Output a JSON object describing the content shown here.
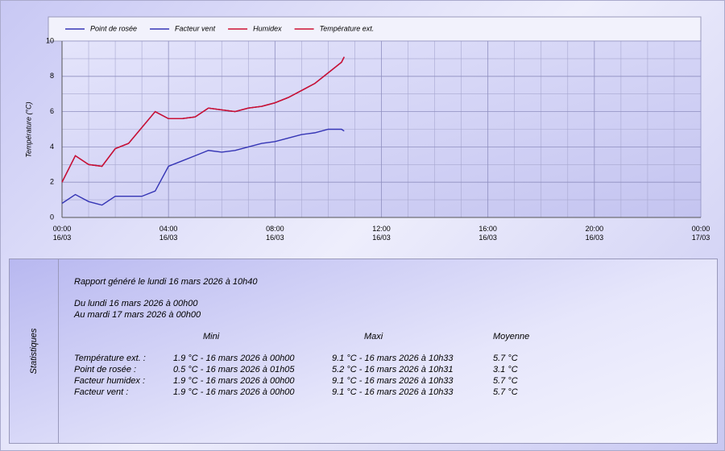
{
  "chart_data": {
    "type": "line",
    "ylabel": "Température (°C)",
    "x": [
      0,
      0.5,
      1,
      1.5,
      2,
      2.5,
      3,
      3.5,
      4,
      4.5,
      5,
      5.5,
      6,
      6.5,
      7,
      7.5,
      8,
      8.5,
      9,
      9.5,
      10,
      10.5,
      10.6
    ],
    "xlim": [
      0,
      24
    ],
    "xticks": [
      {
        "value": 0,
        "label": "00:00\n16/03"
      },
      {
        "value": 4,
        "label": "04:00\n16/03"
      },
      {
        "value": 8,
        "label": "08:00\n16/03"
      },
      {
        "value": 12,
        "label": "12:00\n16/03"
      },
      {
        "value": 16,
        "label": "16:00\n16/03"
      },
      {
        "value": 20,
        "label": "20:00\n16/03"
      },
      {
        "value": 24,
        "label": "00:00\n17/03"
      }
    ],
    "ylim": [
      0,
      10
    ],
    "yticks": [
      0,
      2,
      4,
      6,
      8,
      10
    ],
    "grid": true,
    "legend": "top",
    "series": [
      {
        "name": "Point de rosée",
        "color": "#3535b5",
        "values": [
          0.8,
          1.3,
          0.9,
          0.7,
          1.2,
          1.2,
          1.2,
          1.5,
          2.9,
          3.2,
          3.5,
          3.8,
          3.7,
          3.8,
          4.0,
          4.2,
          4.3,
          4.5,
          4.7,
          4.8,
          5.0,
          5.0,
          4.9
        ]
      },
      {
        "name": "Facteur vent",
        "color": "#3535b5",
        "values": [
          2.0,
          3.5,
          3.0,
          2.9,
          3.9,
          4.2,
          5.1,
          6.0,
          5.6,
          5.6,
          5.7,
          6.2,
          6.1,
          6.0,
          6.2,
          6.3,
          6.5,
          6.8,
          7.2,
          7.6,
          8.2,
          8.8,
          9.1
        ]
      },
      {
        "name": "Humidex",
        "color": "#cc1133",
        "values": [
          2.0,
          3.5,
          3.0,
          2.9,
          3.9,
          4.2,
          5.1,
          6.0,
          5.6,
          5.6,
          5.7,
          6.2,
          6.1,
          6.0,
          6.2,
          6.3,
          6.5,
          6.8,
          7.2,
          7.6,
          8.2,
          8.8,
          9.1
        ]
      },
      {
        "name": "Température ext.",
        "color": "#cc1133",
        "values": [
          2.0,
          3.5,
          3.0,
          2.9,
          3.9,
          4.2,
          5.1,
          6.0,
          5.6,
          5.6,
          5.7,
          6.2,
          6.1,
          6.0,
          6.2,
          6.3,
          6.5,
          6.8,
          7.2,
          7.6,
          8.2,
          8.8,
          9.1
        ]
      }
    ]
  },
  "stats": {
    "side_label": "Statistiques",
    "report": "Rapport généré le lundi 16 mars 2026 à 10h40",
    "from": "Du lundi 16 mars 2026 à 00h00",
    "to": "Au mardi 17 mars 2026 à 00h00",
    "headers": [
      "Mini",
      "Maxi",
      "Moyenne"
    ],
    "rows": [
      [
        "Température ext. :",
        "1.9 °C - 16 mars 2026 à 00h00",
        "9.1 °C - 16 mars 2026 à 10h33",
        "5.7 °C"
      ],
      [
        "Point de rosée :",
        "0.5 °C - 16 mars 2026 à 01h05",
        "5.2 °C - 16 mars 2026 à 10h31",
        "3.1 °C"
      ],
      [
        "Facteur humidex :",
        "1.9 °C - 16 mars 2026 à 00h00",
        "9.1 °C - 16 mars 2026 à 10h33",
        "5.7 °C"
      ],
      [
        "Facteur vent :",
        "1.9 °C - 16 mars 2026 à 00h00",
        "9.1 °C - 16 mars 2026 à 10h33",
        "5.7 °C"
      ]
    ]
  }
}
